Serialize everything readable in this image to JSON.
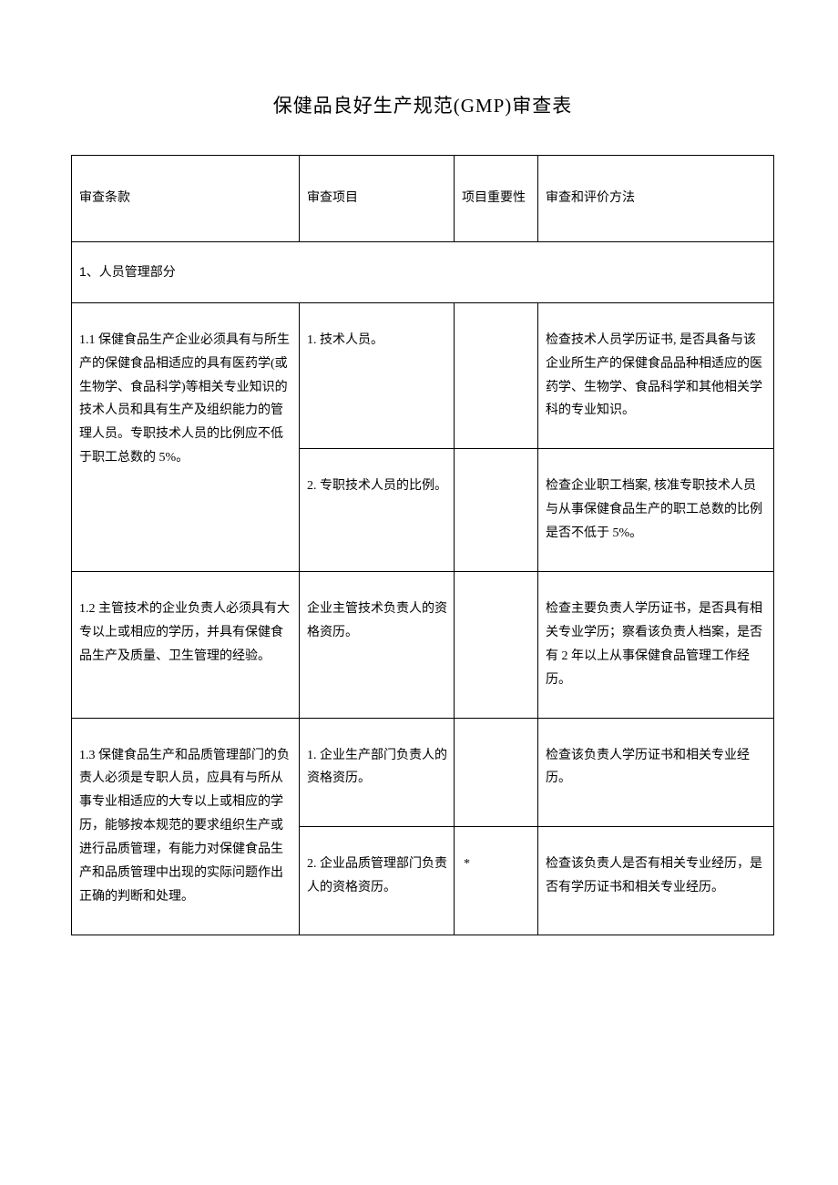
{
  "title": "保健品良好生产规范(GMP)审查表",
  "header": {
    "clause": "审查条款",
    "item": "审查项目",
    "importance": "项目重要性",
    "method": "审查和评价方法"
  },
  "section1": {
    "heading": "1、人员管理部分"
  },
  "rows": [
    {
      "clause": "1.1 保健食品生产企业必须具有与所生产的保健食品相适应的具有医药学(或生物学、食品科学)等相关专业知识的技术人员和具有生产及组织能力的管理人员。专职技术人员的比例应不低于职工总数的 5%。",
      "items": [
        {
          "item": "1. 技术人员。",
          "importance": "",
          "method": "检查技术人员学历证书, 是否具备与该企业所生产的保健食品品种相适应的医药学、生物学、食品科学和其他相关学科的专业知识。"
        },
        {
          "item": "2. 专职技术人员的比例。",
          "importance": "",
          "method": "检查企业职工档案, 核准专职技术人员与从事保健食品生产的职工总数的比例是否不低于 5%。"
        }
      ]
    },
    {
      "clause": "1.2 主管技术的企业负责人必须具有大专以上或相应的学历，并具有保健食品生产及质量、卫生管理的经验。",
      "items": [
        {
          "item": "企业主管技术负责人的资格资历。",
          "importance": "",
          "method": "检查主要负责人学历证书，是否具有相关专业学历；察看该负责人档案，是否有 2 年以上从事保健食品管理工作经历。"
        }
      ]
    },
    {
      "clause": "1.3 保健食品生产和品质管理部门的负责人必须是专职人员，应具有与所从事专业相适应的大专以上或相应的学历，能够按本规范的要求组织生产或进行品质管理，有能力对保健食品生产和品质管理中出现的实际问题作出正确的判断和处理。",
      "items": [
        {
          "item": "1. 企业生产部门负责人的资格资历。",
          "importance": "",
          "method": "检查该负责人学历证书和相关专业经历。"
        },
        {
          "item": "2. 企业品质管理部门负责人的资格资历。",
          "importance": "*",
          "method": "检查该负责人是否有相关专业经历，是否有学历证书和相关专业经历。"
        }
      ]
    }
  ]
}
